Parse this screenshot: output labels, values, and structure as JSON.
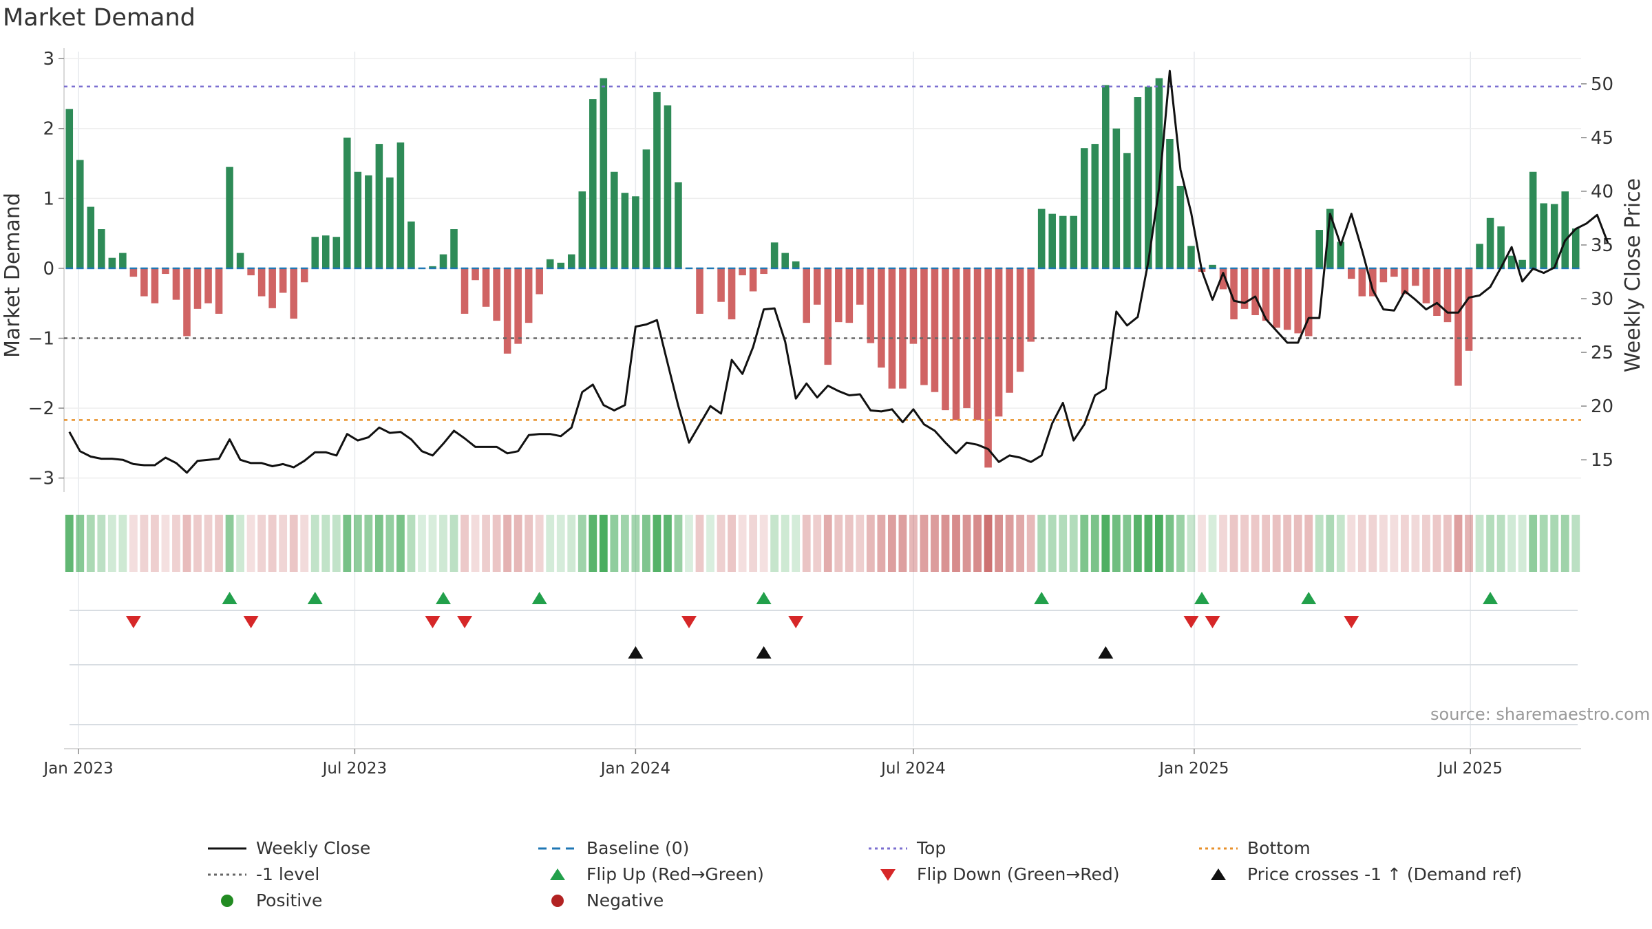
{
  "chart_data": {
    "type": "bar",
    "title": "Market Demand",
    "ylabel": "Market Demand",
    "y2label": "Weekly Close Price",
    "ylim": [
      -3.2,
      3.1
    ],
    "y2lim": [
      12,
      53
    ],
    "yticks": [
      3,
      2,
      1,
      0,
      -1,
      -2,
      -3
    ],
    "y2ticks": [
      50,
      45,
      40,
      35,
      30,
      25,
      20,
      15
    ],
    "x_start": "2022-12-26",
    "x_step_days": 7,
    "xticks": [
      {
        "date": "2023-01-01",
        "label": "Jan 2023"
      },
      {
        "date": "2023-07-01",
        "label": "Jul 2023"
      },
      {
        "date": "2024-01-01",
        "label": "Jan 2024"
      },
      {
        "date": "2024-07-01",
        "label": "Jul 2024"
      },
      {
        "date": "2025-01-01",
        "label": "Jan 2025"
      },
      {
        "date": "2025-07-01",
        "label": "Jul 2025"
      }
    ],
    "reference_lines": {
      "top": 2.6,
      "minus_one": -1,
      "bottom": -2.17,
      "baseline": 0
    },
    "series": [
      {
        "name": "Market Demand",
        "values": [
          2.28,
          1.55,
          0.88,
          0.56,
          0.15,
          0.22,
          -0.12,
          -0.4,
          -0.5,
          -0.08,
          -0.45,
          -0.97,
          -0.58,
          -0.5,
          -0.65,
          1.45,
          0.22,
          -0.1,
          -0.4,
          -0.57,
          -0.35,
          -0.72,
          -0.2,
          0.45,
          0.47,
          0.45,
          1.87,
          1.38,
          1.33,
          1.78,
          1.3,
          1.8,
          0.67,
          0,
          0.03,
          0.2,
          0.56,
          -0.65,
          -0.17,
          -0.55,
          -0.75,
          -1.22,
          -1.08,
          -0.78,
          -0.37,
          0.13,
          0.08,
          0.2,
          1.1,
          2.42,
          2.72,
          1.38,
          1.08,
          1.03,
          1.7,
          2.52,
          2.33,
          1.23,
          0,
          -0.65,
          0,
          -0.48,
          -0.73,
          -0.1,
          -0.33,
          -0.08,
          0.37,
          0.22,
          0.1,
          -0.78,
          -0.52,
          -1.38,
          -0.77,
          -0.78,
          -0.52,
          -1.07,
          -1.42,
          -1.72,
          -1.72,
          -1.08,
          -1.67,
          -1.77,
          -2.03,
          -2.17,
          -2.0,
          -2.17,
          -2.85,
          -2.12,
          -1.78,
          -1.48,
          -1.05,
          0.85,
          0.78,
          0.75,
          0.75,
          1.72,
          1.78,
          2.62,
          2.0,
          1.65,
          2.45,
          2.6,
          2.72,
          1.85,
          1.18,
          0.32,
          -0.05,
          0.05,
          -0.3,
          -0.73,
          -0.58,
          -0.67,
          -0.75,
          -0.85,
          -0.88,
          -0.93,
          -0.97,
          0.55,
          0.85,
          0.38,
          -0.15,
          -0.4,
          -0.4,
          -0.2,
          -0.12,
          -0.37,
          -0.25,
          -0.5,
          -0.68,
          -0.77,
          -1.68,
          -1.18,
          0.35,
          0.72,
          0.6,
          0.18,
          0.12,
          1.38,
          0.93,
          0.92,
          1.1,
          0.57
        ]
      },
      {
        "name": "Weekly Close",
        "values": [
          17.6,
          15.8,
          15.3,
          15.1,
          15.1,
          15.0,
          14.6,
          14.5,
          14.5,
          15.2,
          14.7,
          13.8,
          14.9,
          15.0,
          15.1,
          16.9,
          15.0,
          14.7,
          14.7,
          14.4,
          14.6,
          14.3,
          14.9,
          15.7,
          15.7,
          15.4,
          17.4,
          16.8,
          17.1,
          18.0,
          17.5,
          17.6,
          16.9,
          15.8,
          15.4,
          16.5,
          17.7,
          17.0,
          16.2,
          16.2,
          16.2,
          15.6,
          15.8,
          17.3,
          17.4,
          17.4,
          17.2,
          18.0,
          21.3,
          22.0,
          20.1,
          19.6,
          20.1,
          27.4,
          27.6,
          28.0,
          24.0,
          20.0,
          16.6,
          18.3,
          20.0,
          19.3,
          24.3,
          23.0,
          25.5,
          29.0,
          29.1,
          26.0,
          20.7,
          22.1,
          20.8,
          21.9,
          21.4,
          21.0,
          21.1,
          19.6,
          19.5,
          19.7,
          18.5,
          19.7,
          18.3,
          17.7,
          16.6,
          15.6,
          16.6,
          16.4,
          16.0,
          14.8,
          15.4,
          15.2,
          14.8,
          15.4,
          18.4,
          20.3,
          16.8,
          18.3,
          21.0,
          21.6,
          28.8,
          27.5,
          28.3,
          33.5,
          40.3,
          51.2,
          42.0,
          38.0,
          32.6,
          29.9,
          32.4,
          29.8,
          29.6,
          30.2,
          28.1,
          27.0,
          25.9,
          25.9,
          28.2,
          28.2,
          37.9,
          35.0,
          37.9,
          34.5,
          30.8,
          29.0,
          28.9,
          30.7,
          29.9,
          29.0,
          29.6,
          28.7,
          28.7,
          30.1,
          30.3,
          31.1,
          32.9,
          34.8,
          31.6,
          32.8,
          32.4,
          32.9,
          35.4,
          36.5,
          37.0,
          37.8,
          35.2
        ]
      }
    ],
    "flip_up": [
      15,
      23,
      35,
      44,
      65,
      91,
      106,
      116,
      133
    ],
    "flip_down": [
      6,
      17,
      34,
      37,
      58,
      68,
      105,
      107,
      120
    ],
    "price_crosses": [
      53,
      65,
      97
    ],
    "legend": [
      "Weekly Close",
      "Baseline (0)",
      "Top",
      "Bottom",
      "-1 level",
      "Flip Up (Red→Green)",
      "Flip Down (Green→Red)",
      "Price crosses -1 ↑ (Demand ref)",
      "Positive",
      "Negative"
    ],
    "source": "source: sharemaestro.com"
  },
  "colors": {
    "positive": "#2e8b57",
    "negative": "#cd5c5c",
    "price_line": "#111111",
    "baseline": "#1f77b4",
    "top": "#7b6fd0",
    "minus_one": "#666666",
    "bottom": "#e8902a",
    "flip_up": "#22a04b",
    "flip_down": "#d62728",
    "cross": "#111111",
    "positive_dot": "#228b22",
    "negative_dot": "#b22222"
  }
}
